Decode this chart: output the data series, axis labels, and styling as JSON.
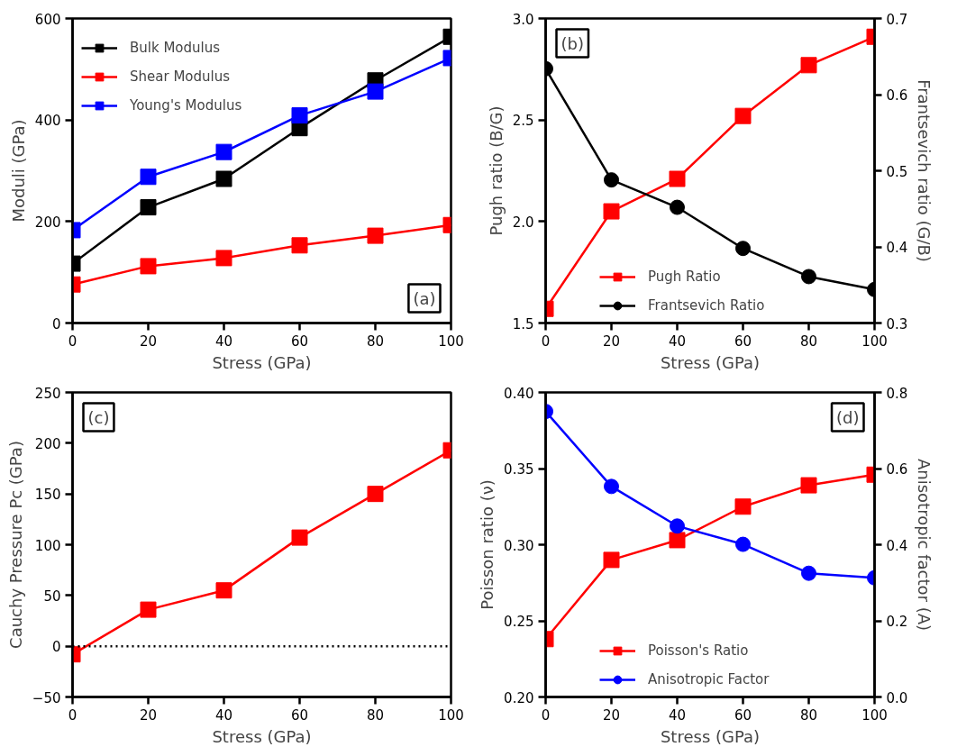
{
  "chart_data": [
    {
      "type": "line",
      "xlabel": "Stress (GPa)",
      "ylabel": "Moduli (GPa)",
      "x": [
        0,
        20,
        40,
        60,
        80,
        100
      ],
      "xlim": [
        0,
        100
      ],
      "xticks": [
        0,
        20,
        40,
        60,
        80,
        100
      ],
      "ylim": [
        0,
        600
      ],
      "yticks": [
        0,
        200,
        400,
        600
      ],
      "grid": false,
      "legend": "top left",
      "annotations": [
        "(a)"
      ],
      "series": [
        {
          "name": "Bulk Modulus",
          "color": "#000000",
          "marker": "square",
          "values": [
            117,
            228,
            284,
            384,
            478,
            564
          ]
        },
        {
          "name": "Shear Modulus",
          "color": "#ff0000",
          "marker": "square",
          "values": [
            76,
            112,
            128,
            153,
            172,
            193
          ]
        },
        {
          "name": "Young's Modulus",
          "color": "#0000ff",
          "marker": "square",
          "values": [
            183,
            288,
            337,
            409,
            456,
            522
          ]
        }
      ]
    },
    {
      "type": "line",
      "xlabel": "Stress (GPa)",
      "ylabel": "Pugh ratio (B/G)",
      "y2label": "Frantsevich ratio (G/B)",
      "x": [
        0,
        20,
        40,
        60,
        80,
        100
      ],
      "xlim": [
        0,
        100
      ],
      "xticks": [
        0,
        20,
        40,
        60,
        80,
        100
      ],
      "ylim": [
        1.5,
        3.0
      ],
      "yticks": [
        1.5,
        {
          "value": 2,
          "label": "2.0"
        },
        2.5,
        {
          "value": 3,
          "label": "3.0"
        }
      ],
      "y2lim": [
        0.3,
        0.7
      ],
      "y2ticks": [
        0.3,
        0.4,
        0.5,
        0.6,
        0.7
      ],
      "grid": false,
      "legend": "bottom left",
      "annotations": [
        "(b)"
      ],
      "series": [
        {
          "name": "Pugh Ratio",
          "color": "#ff0000",
          "marker": "square",
          "values": [
            1.57,
            2.05,
            2.21,
            2.52,
            2.77,
            2.91
          ]
        },
        {
          "name": "Frantsevich Ratio",
          "color": "#000000",
          "marker": "circle",
          "axis": "y2",
          "values": [
            0.634,
            0.488,
            0.452,
            0.398,
            0.361,
            0.344
          ]
        }
      ]
    },
    {
      "type": "line",
      "xlabel": "Stress (GPa)",
      "ylabel": "Cauchy Pressure Pc (GPa)",
      "x": [
        0,
        20,
        40,
        60,
        80,
        100
      ],
      "xlim": [
        0,
        100
      ],
      "xticks": [
        0,
        20,
        40,
        60,
        80,
        100
      ],
      "ylim": [
        -50,
        250
      ],
      "yticks": [
        -50,
        0,
        50,
        100,
        150,
        200,
        250
      ],
      "grid": false,
      "legend": false,
      "annotations": [
        "(c)"
      ],
      "ref_lines": [
        {
          "axis": "y",
          "value": 0,
          "color": "#000000",
          "line_style": "dotted"
        }
      ],
      "series": [
        {
          "color": "#ff0000",
          "marker": "square",
          "values": [
            -8,
            36,
            55,
            107,
            150,
            193
          ]
        }
      ]
    },
    {
      "type": "line",
      "xlabel": "Stress (GPa)",
      "ylabel": "Poisson ratio (ν)",
      "y2label": "Anisotropic factor (A)",
      "x": [
        0,
        20,
        40,
        60,
        80,
        100
      ],
      "xlim": [
        0,
        100
      ],
      "xticks": [
        0,
        20,
        40,
        60,
        80,
        100
      ],
      "ylim": [
        0.2,
        0.4
      ],
      "yticks": [
        {
          "value": 0.2,
          "label": "0.20"
        },
        0.25,
        {
          "value": 0.3,
          "label": "0.30"
        },
        0.35,
        {
          "value": 0.4,
          "label": "0.40"
        }
      ],
      "y2lim": [
        0,
        0.8
      ],
      "y2ticks": [
        {
          "value": 0,
          "label": "0.0"
        },
        0.2,
        0.4,
        0.6,
        0.8
      ],
      "grid": false,
      "legend": "bottom left",
      "annotations": [
        "(d)"
      ],
      "series": [
        {
          "name": "Poisson's Ratio",
          "color": "#ff0000",
          "marker": "square",
          "values": [
            0.238,
            0.29,
            0.303,
            0.325,
            0.339,
            0.346
          ]
        },
        {
          "name": "Anisotropic Factor",
          "color": "#0000ff",
          "marker": "circle",
          "axis": "y2",
          "values": [
            0.75,
            0.553,
            0.449,
            0.401,
            0.325,
            0.313
          ]
        }
      ]
    }
  ]
}
